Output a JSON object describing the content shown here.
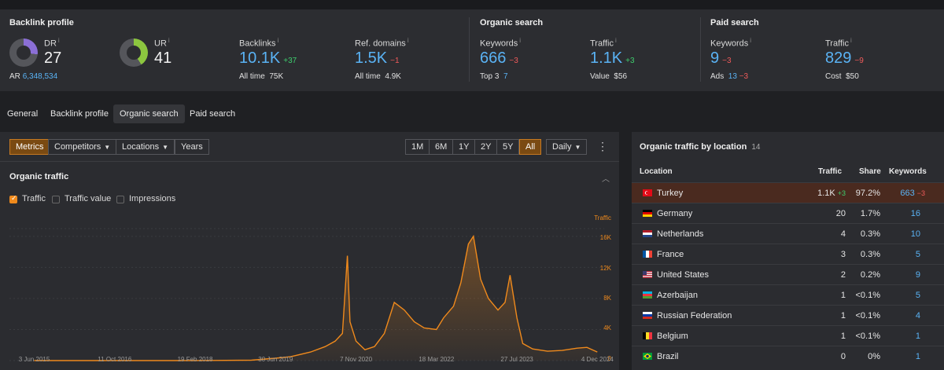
{
  "metrics": {
    "backlink_profile": {
      "title": "Backlink profile",
      "dr": {
        "label": "DR",
        "value": "27",
        "ar_label": "AR",
        "ar_value": "6,348,534",
        "fill_percent": 27
      },
      "ur": {
        "label": "UR",
        "value": "41",
        "fill_percent": 41
      },
      "backlinks": {
        "label": "Backlinks",
        "value": "10.1K",
        "delta": "+37",
        "sub_label": "All time",
        "sub_value": "75K"
      },
      "ref_domains": {
        "label": "Ref. domains",
        "value": "1.5K",
        "delta": "−1",
        "sub_label": "All time",
        "sub_value": "4.9K"
      }
    },
    "organic_search": {
      "title": "Organic search",
      "keywords": {
        "label": "Keywords",
        "value": "666",
        "delta": "−3",
        "sub_label": "Top 3",
        "sub_value": "7"
      },
      "traffic": {
        "label": "Traffic",
        "value": "1.1K",
        "delta": "+3",
        "sub_label": "Value",
        "sub_value": "$56"
      }
    },
    "paid_search": {
      "title": "Paid search",
      "keywords": {
        "label": "Keywords",
        "value": "9",
        "delta": "−3",
        "sub_label": "Ads",
        "sub_value": "13",
        "sub_delta": "−3"
      },
      "traffic": {
        "label": "Traffic",
        "value": "829",
        "delta": "−9",
        "sub_label": "Cost",
        "sub_value": "$50"
      }
    },
    "colors": {
      "dr_donut": "#8b6fd6",
      "ur_donut": "#8cc63f",
      "accent": "#f08a1c",
      "link": "#5ab3f5"
    }
  },
  "nav_tabs": [
    "General",
    "Backlink profile",
    "Organic search",
    "Paid search"
  ],
  "active_tab": "Organic search",
  "toolbar": {
    "metrics": "Metrics",
    "competitors": "Competitors",
    "locations": "Locations",
    "years": "Years",
    "ranges": [
      "1M",
      "6M",
      "1Y",
      "2Y",
      "5Y",
      "All"
    ],
    "active_range": "All",
    "interval": "Daily"
  },
  "organic_traffic": {
    "title": "Organic traffic",
    "checkboxes": [
      {
        "label": "Traffic",
        "checked": true
      },
      {
        "label": "Traffic value",
        "checked": false
      },
      {
        "label": "Impressions",
        "checked": false
      }
    ],
    "axis_title": "Traffic",
    "y_ticks": [
      "16K",
      "12K",
      "8K",
      "4K",
      "0"
    ]
  },
  "chart_data": {
    "type": "area",
    "ylabel": "Traffic",
    "ylim": [
      0,
      17500
    ],
    "x_ticks": [
      "3 Jun 2015",
      "11 Oct 2016",
      "19 Feb 2018",
      "30 Jun 2019",
      "7 Nov 2020",
      "18 Mar 2022",
      "27 Jul 2023",
      "4 Dec 2024"
    ],
    "series": [
      {
        "values_by_date": [
          [
            "2015-06-03",
            0
          ],
          [
            "2016-10-11",
            0
          ],
          [
            "2018-02-19",
            0
          ],
          [
            "2019-02-01",
            50
          ],
          [
            "2019-06-30",
            300
          ],
          [
            "2019-10-01",
            500
          ],
          [
            "2020-02-01",
            1100
          ],
          [
            "2020-05-01",
            1800
          ],
          [
            "2020-07-01",
            2500
          ],
          [
            "2020-08-15",
            3500
          ],
          [
            "2020-09-15",
            13500
          ],
          [
            "2020-10-01",
            5000
          ],
          [
            "2020-11-07",
            2500
          ],
          [
            "2021-01-01",
            1400
          ],
          [
            "2021-03-01",
            1800
          ],
          [
            "2021-05-01",
            3500
          ],
          [
            "2021-07-01",
            7500
          ],
          [
            "2021-09-01",
            6500
          ],
          [
            "2021-11-01",
            5000
          ],
          [
            "2022-01-01",
            4200
          ],
          [
            "2022-03-18",
            4000
          ],
          [
            "2022-05-01",
            5500
          ],
          [
            "2022-07-01",
            7000
          ],
          [
            "2022-08-15",
            10000
          ],
          [
            "2022-10-01",
            15000
          ],
          [
            "2022-11-01",
            16000
          ],
          [
            "2022-12-15",
            10500
          ],
          [
            "2023-02-01",
            8000
          ],
          [
            "2023-04-01",
            6500
          ],
          [
            "2023-05-15",
            7500
          ],
          [
            "2023-06-15",
            11000
          ],
          [
            "2023-07-27",
            5500
          ],
          [
            "2023-09-01",
            2200
          ],
          [
            "2023-11-01",
            1500
          ],
          [
            "2024-02-01",
            1200
          ],
          [
            "2024-05-01",
            1300
          ],
          [
            "2024-08-01",
            1600
          ],
          [
            "2024-10-01",
            1700
          ],
          [
            "2024-12-04",
            1100
          ]
        ]
      }
    ]
  },
  "location_panel": {
    "title": "Organic traffic by location",
    "count": "14",
    "headers": {
      "location": "Location",
      "traffic": "Traffic",
      "share": "Share",
      "keywords": "Keywords"
    },
    "rows": [
      {
        "flag": "turkey-flag",
        "name": "Turkey",
        "traffic": "1.1K",
        "traffic_delta": "+3",
        "share": "97.2%",
        "keywords": "663",
        "keywords_delta": "−3",
        "highlight": true
      },
      {
        "flag": "germany-flag",
        "name": "Germany",
        "traffic": "20",
        "share": "1.7%",
        "keywords": "16"
      },
      {
        "flag": "netherlands-flag",
        "name": "Netherlands",
        "traffic": "4",
        "share": "0.3%",
        "keywords": "10"
      },
      {
        "flag": "france-flag",
        "name": "France",
        "traffic": "3",
        "share": "0.3%",
        "keywords": "5"
      },
      {
        "flag": "us-flag",
        "name": "United States",
        "traffic": "2",
        "share": "0.2%",
        "keywords": "9"
      },
      {
        "flag": "azerbaijan-flag",
        "name": "Azerbaijan",
        "traffic": "1",
        "share": "<0.1%",
        "keywords": "5"
      },
      {
        "flag": "russia-flag",
        "name": "Russian Federation",
        "traffic": "1",
        "share": "<0.1%",
        "keywords": "4"
      },
      {
        "flag": "belgium-flag",
        "name": "Belgium",
        "traffic": "1",
        "share": "<0.1%",
        "keywords": "1"
      },
      {
        "flag": "brazil-flag",
        "name": "Brazil",
        "traffic": "0",
        "share": "0%",
        "keywords": "1"
      }
    ]
  }
}
